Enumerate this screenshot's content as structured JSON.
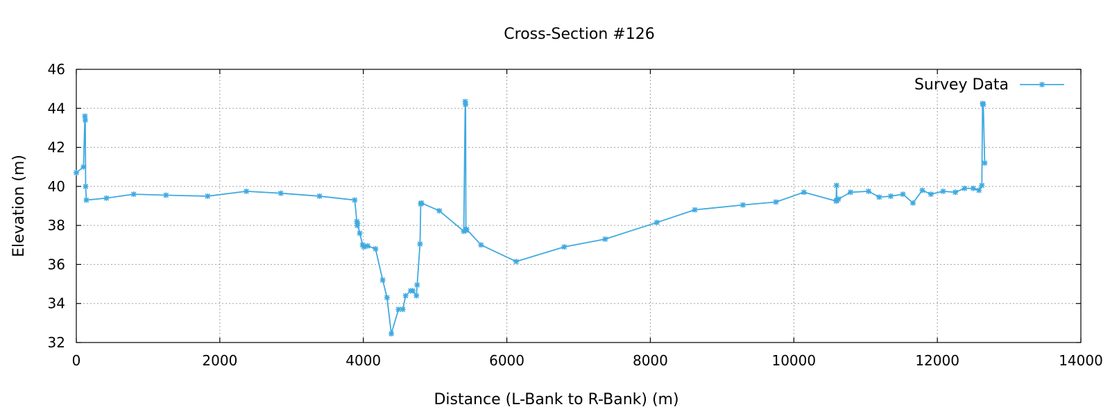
{
  "chart_data": {
    "type": "line",
    "title": "Cross-Section #126",
    "xlabel": "Distance (L-Bank to R-Bank) (m)",
    "ylabel": "Elevation (m)",
    "xlim": [
      0,
      14000
    ],
    "ylim": [
      32,
      46
    ],
    "xticks": [
      0,
      2000,
      4000,
      6000,
      8000,
      10000,
      12000,
      14000
    ],
    "yticks": [
      32,
      34,
      36,
      38,
      40,
      42,
      44,
      46
    ],
    "grid": true,
    "legend_position": "top-right",
    "series": [
      {
        "name": "Survey Data",
        "color": "#3fa9e0",
        "marker": "asterisk",
        "x": [
          0,
          100,
          120,
          125,
          130,
          140,
          420,
          800,
          1250,
          1830,
          2370,
          2850,
          3390,
          3880,
          3910,
          3915,
          3920,
          3950,
          3990,
          4010,
          4060,
          4170,
          4270,
          4330,
          4390,
          4490,
          4550,
          4590,
          4660,
          4690,
          4740,
          4750,
          4790,
          4800,
          4810,
          5060,
          5400,
          5420,
          5425,
          5430,
          5440,
          5640,
          6130,
          6800,
          7370,
          8090,
          8620,
          9290,
          9750,
          10140,
          10590,
          10595,
          10600,
          10620,
          10790,
          11040,
          11190,
          11350,
          11520,
          11660,
          11790,
          11910,
          12080,
          12250,
          12380,
          12500,
          12580,
          12620,
          12630,
          12640,
          12660
        ],
        "y": [
          40.7,
          41.0,
          43.6,
          43.4,
          40.0,
          39.3,
          39.4,
          39.6,
          39.55,
          39.5,
          39.75,
          39.65,
          39.5,
          39.3,
          38.2,
          38.0,
          38.1,
          37.6,
          37.0,
          36.9,
          36.95,
          36.8,
          35.2,
          34.3,
          32.45,
          33.7,
          33.7,
          34.4,
          34.65,
          34.65,
          34.4,
          34.95,
          37.05,
          39.1,
          39.15,
          38.75,
          37.7,
          44.35,
          44.2,
          37.75,
          37.8,
          37.0,
          36.15,
          36.9,
          37.3,
          38.15,
          38.8,
          39.05,
          39.2,
          39.7,
          39.25,
          40.05,
          39.3,
          39.35,
          39.7,
          39.75,
          39.45,
          39.5,
          39.6,
          39.15,
          39.8,
          39.6,
          39.75,
          39.7,
          39.9,
          39.9,
          39.8,
          40.05,
          44.25,
          44.2,
          41.2
        ]
      }
    ]
  }
}
